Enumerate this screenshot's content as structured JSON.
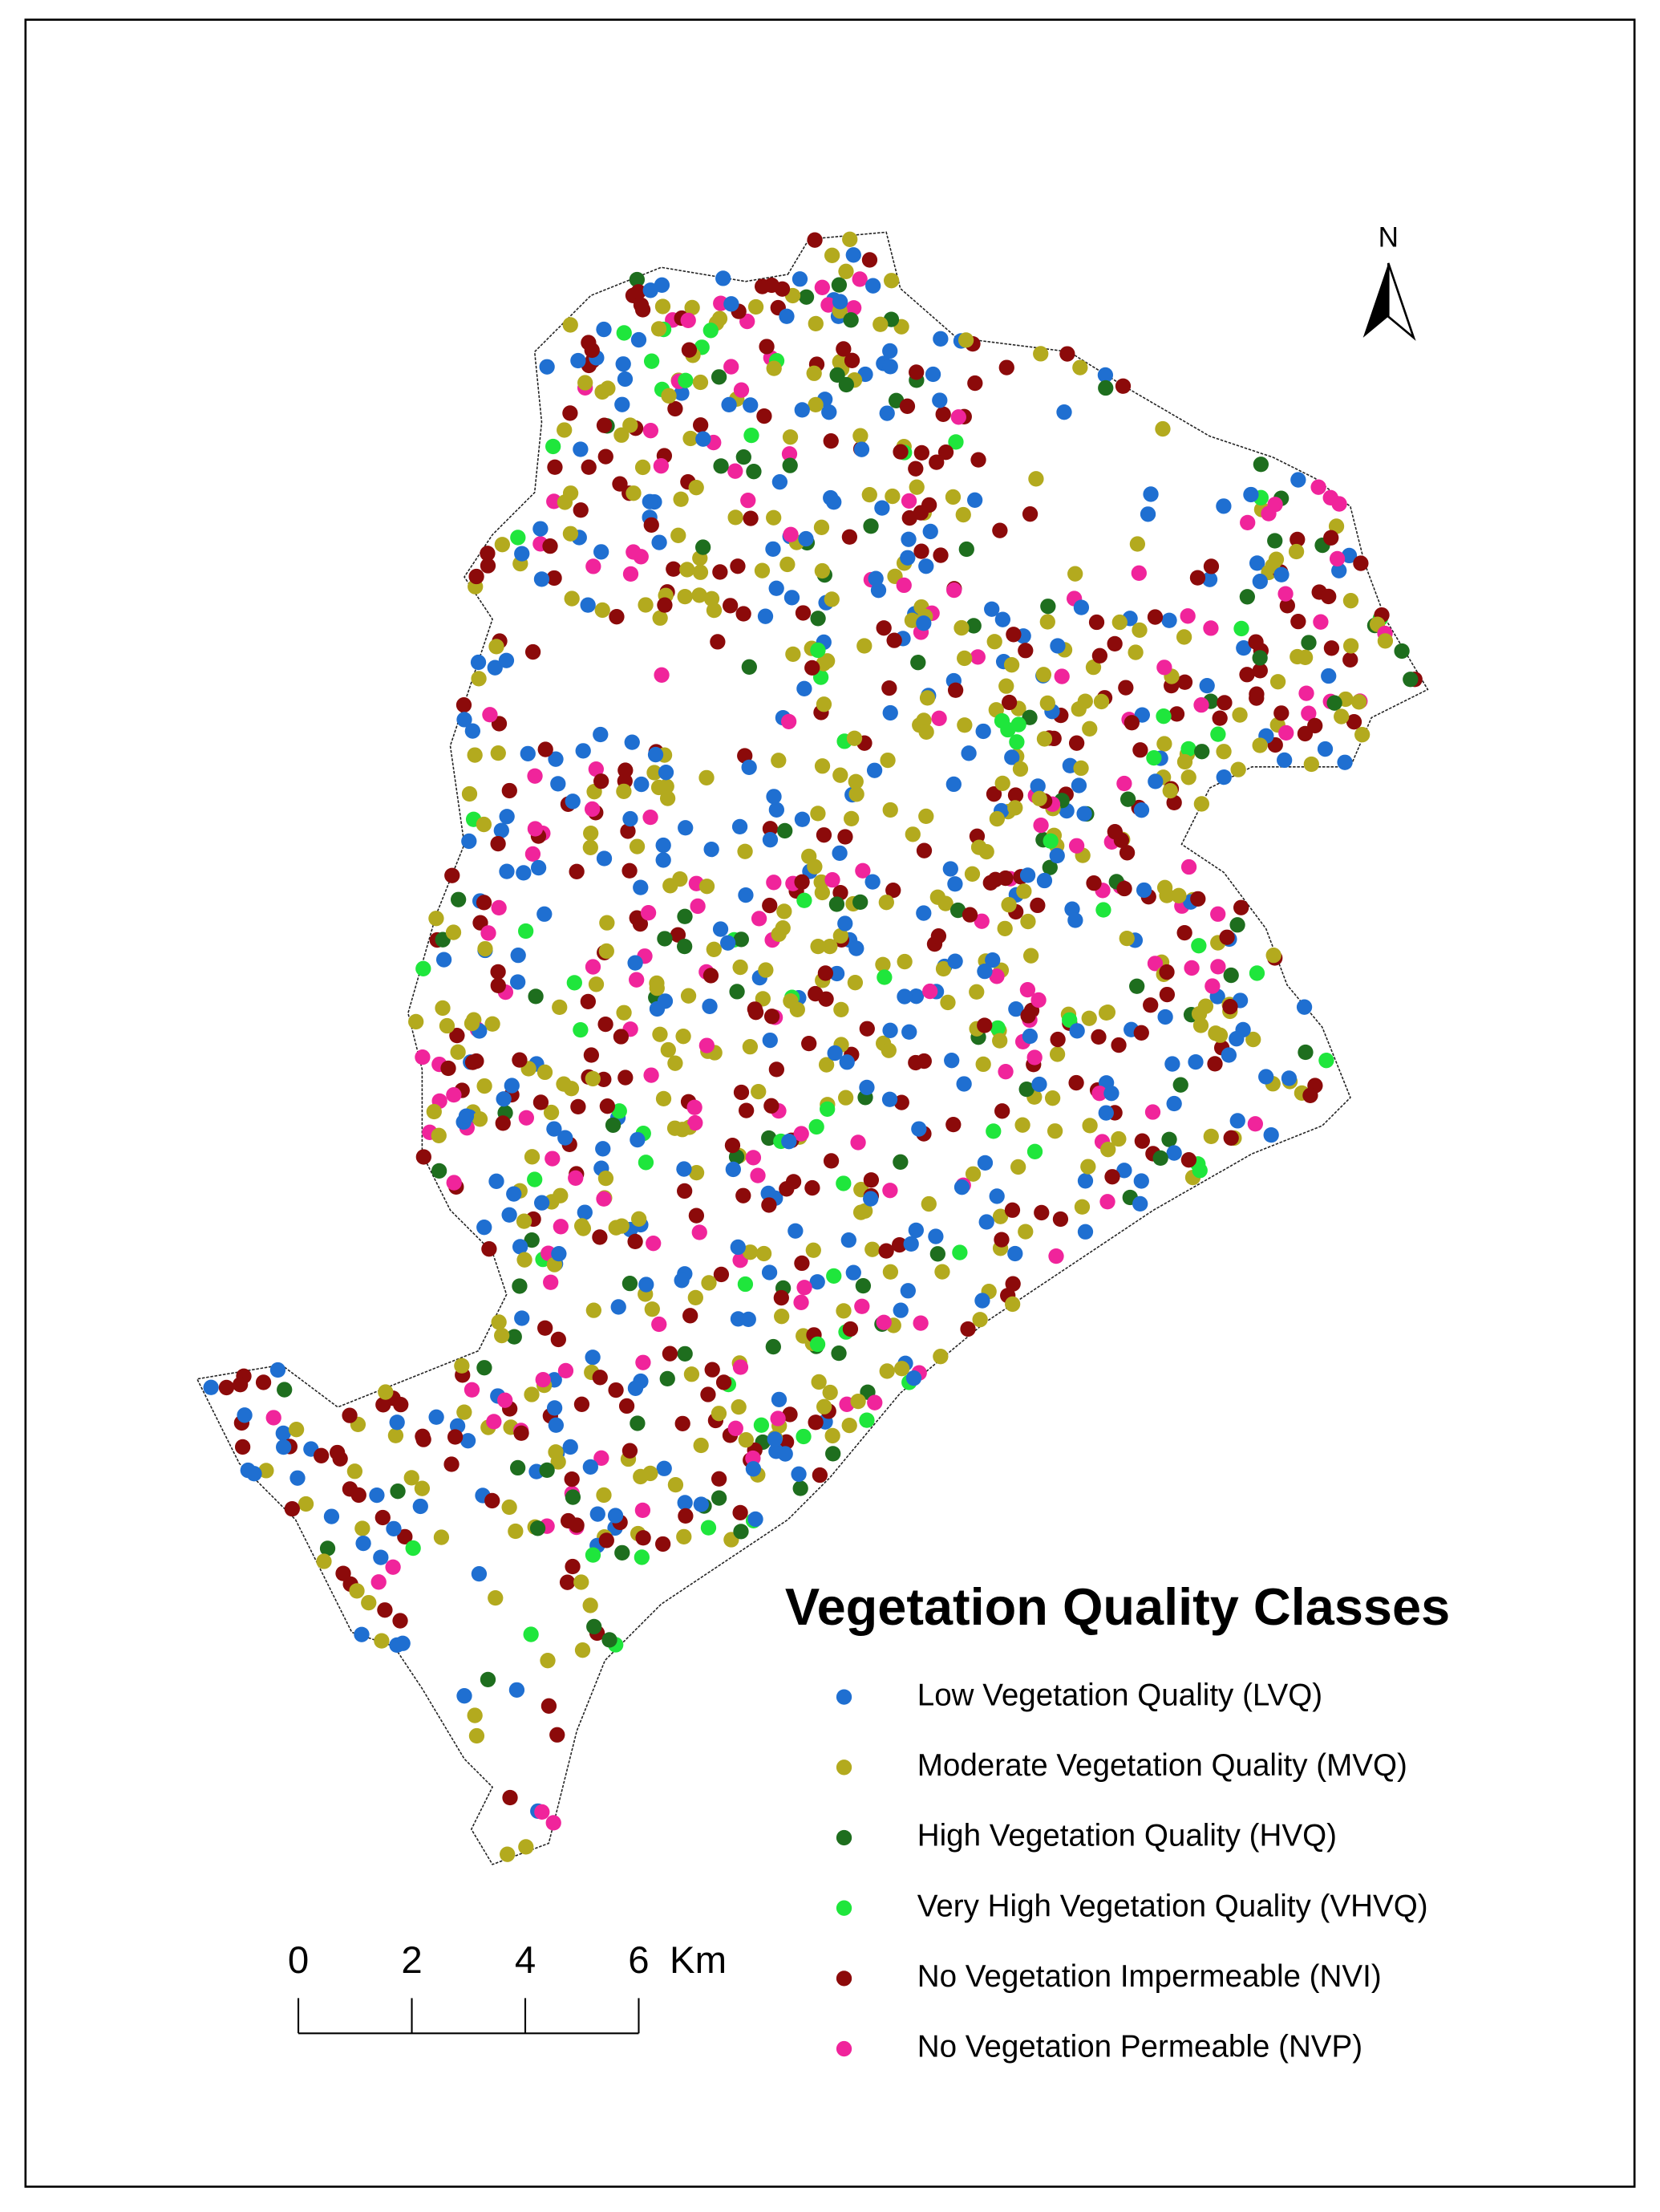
{
  "map": {
    "north_label": "N",
    "legend": {
      "title": "Vegetation Quality Classes",
      "items": [
        {
          "label": "Low Vegetation Quality (LVQ)",
          "color": "#1f6fd1"
        },
        {
          "label": "Moderate Vegetation Quality (MVQ)",
          "color": "#b3aa1e"
        },
        {
          "label": "High Vegetation Quality (HVQ)",
          "color": "#1e6e1e"
        },
        {
          "label": "Very High Vegetation Quality (VHVQ)",
          "color": "#1fe63c"
        },
        {
          "label": "No Vegetation Impermeable (NVI)",
          "color": "#8c0a0a"
        },
        {
          "label": "No Vegetation Permeable (NVP)",
          "color": "#f0249b"
        }
      ]
    },
    "scale_bar": {
      "ticks": [
        0,
        2,
        4,
        6
      ],
      "unit": "Km"
    }
  }
}
